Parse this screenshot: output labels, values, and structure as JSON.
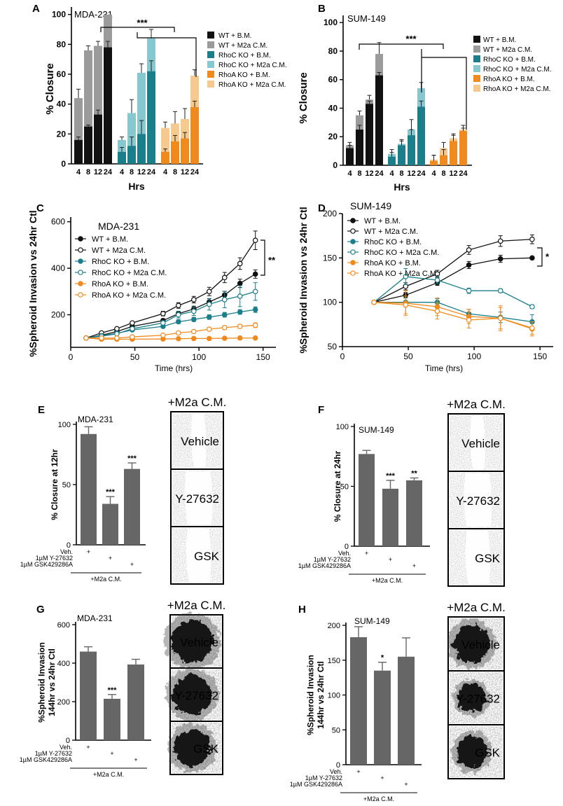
{
  "colors": {
    "wt_bm": "#111111",
    "wt_cm": "#9b9b9b",
    "rhoc_bm": "#1a7f8a",
    "rhoc_cm": "#86c7d0",
    "rhoa_bm": "#f08a1c",
    "rhoa_cm": "#f6c98e",
    "grey_bar": "#666666",
    "line_black": "#111111",
    "line_teal": "#1a7f8a",
    "line_orange": "#f08a1c"
  },
  "legend_labels": [
    "WT + B.M.",
    "WT + M2a C.M.",
    "RhoC KO + B.M.",
    "RhoC KO + M2a C.M.",
    "RhoA KO + B.M.",
    "RhoA KO + M2a C.M."
  ],
  "panel_letters": [
    "A",
    "B",
    "C",
    "D",
    "E",
    "F",
    "G",
    "H"
  ],
  "images": {
    "header": "+M2a C.M.",
    "conditions": [
      "Vehicle",
      "Y-27632",
      "GSK"
    ]
  },
  "treatments": {
    "rows": [
      "Veh.",
      "1µM Y-27632",
      "1µM GSK429286A"
    ],
    "marker": "+",
    "group": "+M2a C.M."
  },
  "chart_data": [
    {
      "panel": "A",
      "type": "bar",
      "title": "MDA-231",
      "ylabel": "% Closure",
      "xlabel": "Hrs",
      "ylim": [
        0,
        105
      ],
      "yticks": [
        0,
        20,
        40,
        60,
        80,
        100
      ],
      "time_labels": [
        "4",
        "8",
        "12",
        "24"
      ],
      "significance": "***",
      "groups": [
        {
          "bm": [
            16,
            25,
            33,
            78
          ],
          "cm": [
            44,
            76,
            79,
            100
          ],
          "bm_err": [
            2,
            1,
            3,
            4
          ],
          "cm_err": [
            6,
            3,
            3,
            0
          ]
        },
        {
          "bm": [
            8,
            12,
            20,
            62
          ],
          "cm": [
            16,
            34,
            61,
            84
          ],
          "bm_err": [
            3,
            6,
            9,
            7
          ],
          "cm_err": [
            2,
            9,
            6,
            6
          ]
        },
        {
          "bm": [
            8,
            15,
            17,
            38
          ],
          "cm": [
            24,
            27,
            30,
            59
          ],
          "bm_err": [
            2,
            4,
            4,
            4
          ],
          "cm_err": [
            4,
            8,
            7,
            4
          ]
        }
      ]
    },
    {
      "panel": "B",
      "type": "bar",
      "title": "SUM-149",
      "ylabel": "% Closure",
      "xlabel": "Hrs",
      "ylim": [
        0,
        105
      ],
      "yticks": [
        0,
        20,
        40,
        60,
        80,
        100
      ],
      "time_labels": [
        "4",
        "8",
        "12",
        "24"
      ],
      "significance": "***",
      "groups": [
        {
          "bm": [
            12,
            25,
            43,
            63
          ],
          "cm": [
            14,
            35,
            46,
            78
          ],
          "bm_err": [
            2,
            3,
            2,
            2
          ],
          "cm_err": [
            2,
            3,
            3,
            8
          ]
        },
        {
          "bm": [
            6,
            14,
            21,
            41
          ],
          "cm": [
            8,
            15,
            25,
            54
          ],
          "bm_err": [
            3,
            3,
            4,
            4
          ],
          "cm_err": [
            3,
            3,
            7,
            4
          ]
        },
        {
          "bm": [
            3,
            7,
            17,
            24
          ],
          "cm": [
            4,
            12,
            19,
            25
          ],
          "bm_err": [
            4,
            4,
            4,
            2
          ],
          "cm_err": [
            3,
            4,
            3,
            3
          ]
        }
      ]
    },
    {
      "panel": "C",
      "type": "line",
      "title": "MDA-231",
      "ylabel": "%Spheroid Invasion vs 24hr Ctl",
      "xlabel": "Time (hrs)",
      "xlim": [
        0,
        160
      ],
      "ylim": [
        60,
        620
      ],
      "xticks": [
        0,
        50,
        100,
        150
      ],
      "yticks": [
        200,
        400,
        600
      ],
      "x": [
        12,
        24,
        36,
        48,
        72,
        84,
        96,
        108,
        120,
        132,
        144
      ],
      "significance": "**",
      "series": [
        {
          "name": "WT + B.M.",
          "values": [
            100,
            112,
            128,
            150,
            175,
            205,
            225,
            255,
            285,
            335,
            375
          ],
          "err": [
            2,
            3,
            4,
            5,
            8,
            10,
            12,
            14,
            16,
            18,
            18
          ]
        },
        {
          "name": "WT + M2a C.M.",
          "values": [
            100,
            122,
            140,
            165,
            205,
            240,
            265,
            300,
            360,
            420,
            520
          ],
          "err": [
            2,
            4,
            5,
            6,
            10,
            12,
            14,
            18,
            22,
            25,
            40
          ]
        },
        {
          "name": "RhoC KO + B.M.",
          "values": [
            100,
            110,
            120,
            135,
            150,
            170,
            180,
            190,
            200,
            212,
            222
          ],
          "err": [
            2,
            3,
            4,
            5,
            6,
            8,
            9,
            10,
            10,
            10,
            12
          ]
        },
        {
          "name": "RhoC KO + M2a C.M.",
          "values": [
            100,
            108,
            118,
            140,
            165,
            200,
            215,
            245,
            265,
            280,
            300
          ],
          "err": [
            2,
            3,
            4,
            6,
            10,
            14,
            18,
            25,
            35,
            45,
            38
          ]
        },
        {
          "name": "RhoA KO + B.M.",
          "values": [
            100,
            95,
            95,
            95,
            96,
            97,
            98,
            98,
            99,
            100,
            100
          ],
          "err": [
            1,
            2,
            2,
            2,
            2,
            2,
            2,
            2,
            2,
            2,
            2
          ]
        },
        {
          "name": "RhoA KO + M2a C.M.",
          "values": [
            100,
            100,
            100,
            105,
            112,
            122,
            128,
            138,
            145,
            150,
            155
          ],
          "err": [
            1,
            2,
            3,
            4,
            5,
            6,
            6,
            7,
            8,
            8,
            10
          ]
        }
      ]
    },
    {
      "panel": "D",
      "type": "line",
      "title": "SUM-149",
      "ylabel": "%Spheroid Invasion vs 24hr Ctl",
      "xlabel": "Time (hrs)",
      "xlim": [
        0,
        160
      ],
      "ylim": [
        50,
        200
      ],
      "xticks": [
        0,
        50,
        100,
        150
      ],
      "yticks": [
        50,
        100,
        150,
        200
      ],
      "x": [
        24,
        48,
        72,
        96,
        120,
        144
      ],
      "significance": "*",
      "series": [
        {
          "name": "WT + B.M.",
          "values": [
            100,
            108,
            122,
            142,
            149,
            150
          ],
          "err": [
            0,
            3,
            3,
            4,
            4,
            1
          ]
        },
        {
          "name": "WT + M2a C.M.",
          "values": [
            100,
            118,
            132,
            159,
            169,
            171
          ],
          "err": [
            0,
            4,
            4,
            5,
            6,
            5
          ]
        },
        {
          "name": "RhoC KO + B.M.",
          "values": [
            100,
            100,
            100,
            87,
            83,
            78
          ],
          "err": [
            0,
            5,
            4,
            5,
            6,
            8
          ]
        },
        {
          "name": "RhoC KO + M2a C.M.",
          "values": [
            100,
            129,
            125,
            113,
            113,
            95
          ],
          "err": [
            0,
            9,
            4,
            3,
            2,
            2
          ]
        },
        {
          "name": "RhoA KO + B.M.",
          "values": [
            100,
            99,
            95,
            84,
            82,
            70
          ],
          "err": [
            0,
            14,
            10,
            8,
            12,
            8
          ]
        },
        {
          "name": "RhoA KO + M2a C.M.",
          "values": [
            100,
            97,
            90,
            80,
            82,
            71
          ],
          "err": [
            0,
            10,
            9,
            9,
            14,
            7
          ]
        }
      ]
    },
    {
      "panel": "E",
      "type": "bar",
      "title": "MDA-231",
      "ylabel": "% Closure at 12hr",
      "ylim": [
        0,
        100
      ],
      "yticks": [
        0,
        50,
        100
      ],
      "values": [
        92,
        34,
        63
      ],
      "err": [
        6,
        6,
        5
      ],
      "significance": [
        "",
        "***",
        "***"
      ]
    },
    {
      "panel": "F",
      "type": "bar",
      "title": "SUM-149",
      "ylabel": "% Closure at 24hr",
      "ylim": [
        0,
        100
      ],
      "yticks": [
        0,
        50,
        100
      ],
      "values": [
        77,
        48,
        55
      ],
      "err": [
        3,
        7,
        2
      ],
      "significance": [
        "",
        "***",
        "**"
      ]
    },
    {
      "panel": "G",
      "type": "bar",
      "title": "MDA-231",
      "ylabel": "%Spheroid Invasion 144hr vs 24hr Ctl",
      "ylim": [
        0,
        600
      ],
      "yticks": [
        0,
        200,
        400,
        600
      ],
      "values": [
        460,
        215,
        393
      ],
      "err": [
        25,
        22,
        27
      ],
      "significance": [
        "",
        "***",
        ""
      ]
    },
    {
      "panel": "H",
      "type": "bar",
      "title": "SUM-149",
      "ylabel": "%Spheroid Invasion 144hr vs 24hr Ctl",
      "ylim": [
        0,
        200
      ],
      "yticks": [
        0,
        50,
        100,
        150,
        200
      ],
      "values": [
        183,
        135,
        155
      ],
      "err": [
        15,
        12,
        27
      ],
      "significance": [
        "",
        "*",
        ""
      ]
    }
  ]
}
